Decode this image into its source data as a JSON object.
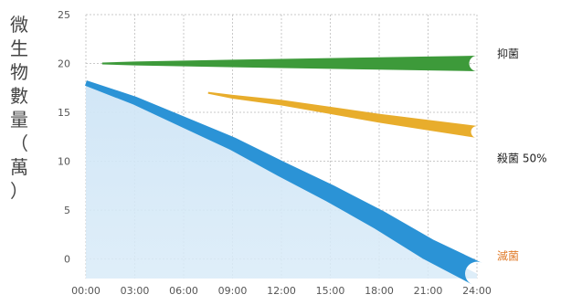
{
  "chart_data": {
    "type": "line",
    "ylabel": "微生物數量（萬）",
    "ylim": [
      -2,
      25
    ],
    "yticks": [
      "0",
      "5",
      "10",
      "15",
      "20",
      "25"
    ],
    "x": [
      "00:00",
      "03:00",
      "06:00",
      "09:00",
      "12:00",
      "15:00",
      "18:00",
      "21:00",
      "24:00"
    ],
    "grid": true,
    "series": [
      {
        "name": "抑菌",
        "color": "#3d9a3a",
        "points": [
          [
            1,
            20
          ],
          [
            3,
            20
          ],
          [
            6,
            20
          ],
          [
            9,
            20
          ],
          [
            12,
            20
          ],
          [
            15,
            20
          ],
          [
            18,
            20
          ],
          [
            21,
            20
          ],
          [
            24,
            20
          ]
        ]
      },
      {
        "name": "殺菌 50%",
        "color": "#e8ad2c",
        "points": [
          [
            7.5,
            17
          ],
          [
            9,
            16.6
          ],
          [
            12,
            16.0
          ],
          [
            15,
            15.2
          ],
          [
            18,
            14.4
          ],
          [
            21,
            13.7
          ],
          [
            24,
            13
          ]
        ]
      },
      {
        "name": "滅菌",
        "color": "#2b93d6",
        "points": [
          [
            0,
            18
          ],
          [
            3,
            16.2
          ],
          [
            6,
            14.0
          ],
          [
            9,
            11.8
          ],
          [
            12,
            9.2
          ],
          [
            15,
            6.7
          ],
          [
            18,
            4.0
          ],
          [
            21,
            1.0
          ],
          [
            24,
            -1.5
          ]
        ]
      }
    ]
  }
}
